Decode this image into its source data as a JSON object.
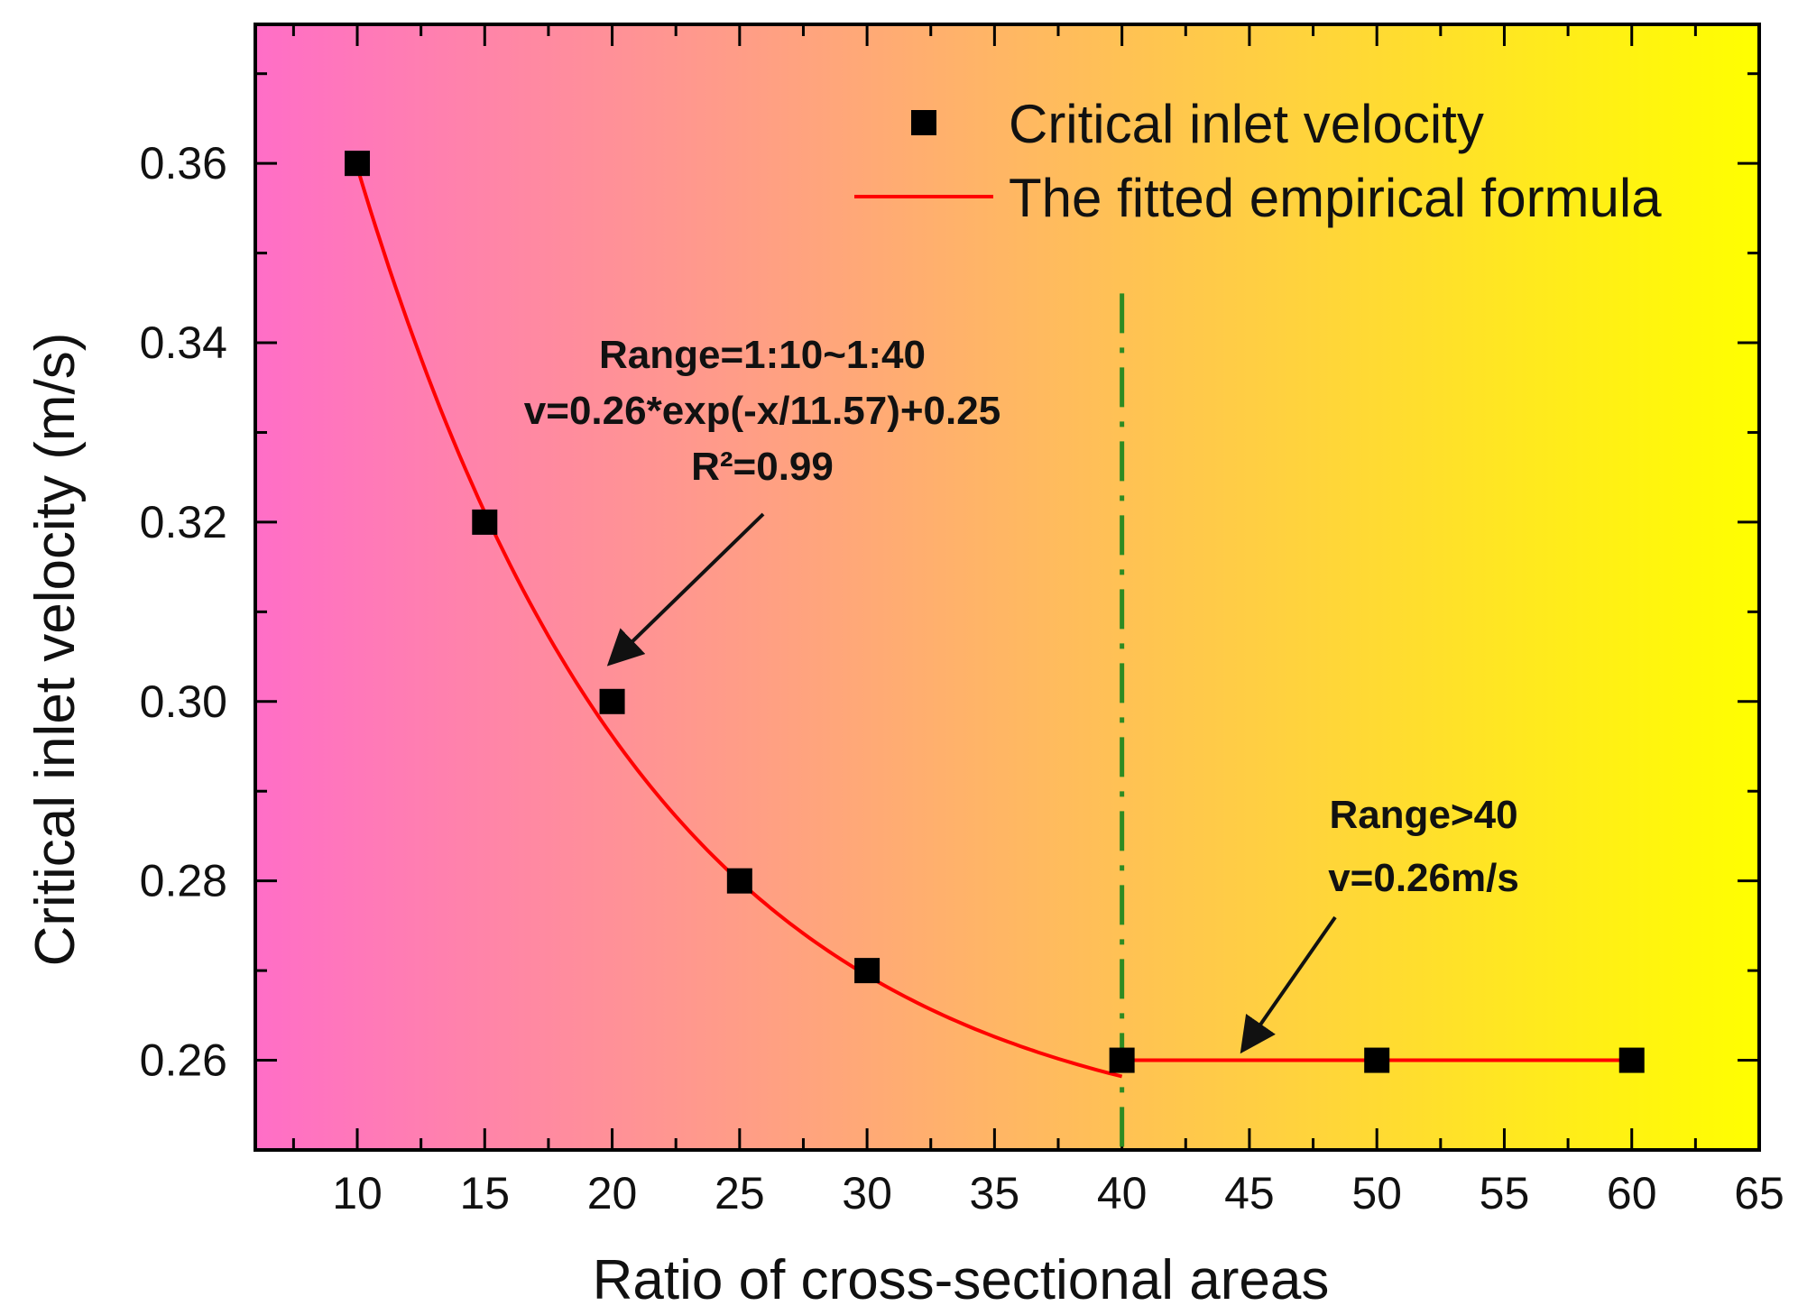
{
  "chart_data": {
    "type": "scatter",
    "xlabel": "Ratio of cross-sectional areas",
    "ylabel": "Critical inlet velocity (m/s)",
    "xlim": [
      6,
      65
    ],
    "ylim": [
      0.25,
      0.3755
    ],
    "xticks": [
      10,
      15,
      20,
      25,
      30,
      35,
      40,
      45,
      50,
      55,
      60,
      65
    ],
    "yticks": [
      0.26,
      0.28,
      0.3,
      0.32,
      0.34,
      0.36
    ],
    "ytick_labels": [
      "0.26",
      "0.28",
      "0.30",
      "0.32",
      "0.34",
      "0.36"
    ],
    "background_gradient": [
      "#ff6ec7",
      "#ffff00"
    ],
    "series": [
      {
        "name": "Critical inlet velocity",
        "kind": "scatter",
        "color": "#000000",
        "x": [
          10,
          15,
          20,
          25,
          30,
          40,
          50,
          60
        ],
        "y": [
          0.36,
          0.32,
          0.3,
          0.28,
          0.27,
          0.26,
          0.26,
          0.26
        ]
      },
      {
        "name": "The fitted empirical formula",
        "kind": "line",
        "color": "#ff0000",
        "segments": [
          {
            "formula": "v=0.26*exp(-x/11.57)+0.25",
            "x_from": 10,
            "x_to": 40
          },
          {
            "constant": 0.26,
            "x_from": 40,
            "x_to": 60
          }
        ]
      }
    ],
    "vline": {
      "x": 40,
      "color": "#2e8b22",
      "style": "dash-dot"
    },
    "annotations": [
      {
        "lines": [
          "Range=1:10~1:40",
          "v=0.26*exp(-x/11.57)+0.25",
          "R²=0.99"
        ],
        "arrow_to": {
          "x": 20,
          "y": 0.3045
        }
      },
      {
        "lines": [
          "Range>40",
          "v=0.26m/s"
        ],
        "arrow_to": {
          "x": 44.8,
          "y": 0.2614
        }
      }
    ],
    "legend": {
      "position": "top-right",
      "entries": [
        "Critical inlet velocity",
        "The fitted empirical formula"
      ]
    }
  }
}
